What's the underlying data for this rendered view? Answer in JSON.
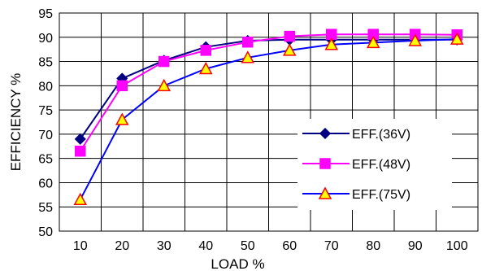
{
  "chart_data": {
    "type": "line",
    "title": "",
    "xlabel": "LOAD %",
    "ylabel": "EFFICIENCY %",
    "x": [
      10,
      20,
      30,
      40,
      50,
      60,
      70,
      80,
      90,
      100
    ],
    "xlim": [
      5,
      105
    ],
    "ylim": [
      50,
      95
    ],
    "yticks": [
      50,
      55,
      60,
      65,
      70,
      75,
      80,
      85,
      90,
      95
    ],
    "xticks": [
      10,
      20,
      30,
      40,
      50,
      60,
      70,
      80,
      90,
      100
    ],
    "grid": true,
    "legend_position": "bottom-right",
    "series": [
      {
        "name": "EFF.(36V)",
        "line_color": "#000080",
        "marker": "diamond",
        "marker_fill": "#000080",
        "marker_stroke": "#000080",
        "values": [
          69.0,
          81.5,
          85.2,
          88.0,
          89.3,
          89.5,
          89.5,
          89.5,
          89.5,
          89.5
        ]
      },
      {
        "name": "EFF.(48V)",
        "line_color": "#ff00ff",
        "marker": "square",
        "marker_fill": "#ff00ff",
        "marker_stroke": "#ff00ff",
        "values": [
          66.5,
          80.0,
          85.0,
          87.3,
          89.0,
          90.2,
          90.6,
          90.6,
          90.6,
          90.5
        ]
      },
      {
        "name": "EFF.(75V)",
        "line_color": "#0000ff",
        "marker": "triangle",
        "marker_fill": "#ffff00",
        "marker_stroke": "#ff0000",
        "values": [
          56.5,
          73.0,
          80.0,
          83.5,
          85.8,
          87.3,
          88.5,
          88.9,
          89.3,
          89.6
        ]
      }
    ]
  }
}
